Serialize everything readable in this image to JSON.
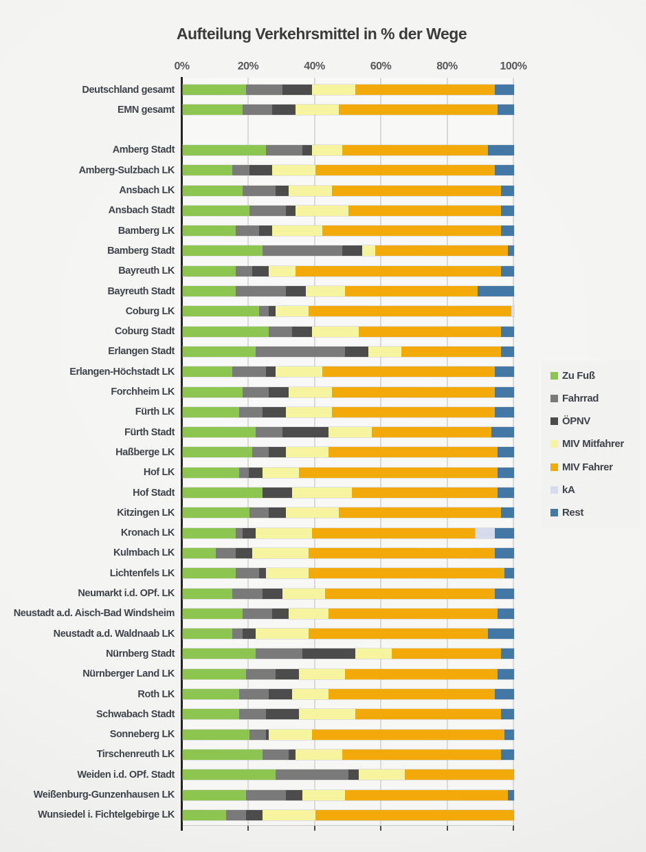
{
  "page": {
    "title": "Aufteilung Verkehrsmittel in % der Wege"
  },
  "chart_data": {
    "type": "bar",
    "orientation": "horizontal-stacked",
    "unit": "percent of trips",
    "xlim": [
      0,
      100
    ],
    "tick_labels": [
      "0%",
      "20%",
      "40%",
      "60%",
      "80%",
      "100%"
    ],
    "tick_values": [
      0,
      20,
      40,
      60,
      80,
      100
    ],
    "grid": "vertical",
    "legend_position": "right",
    "series": [
      {
        "name": "Zu Fuß",
        "color": "#8cc650"
      },
      {
        "name": "Fahrrad",
        "color": "#7a7a7a"
      },
      {
        "name": "ÖPNV",
        "color": "#4c4c4c"
      },
      {
        "name": "MIV Mitfahrer",
        "color": "#f7f4a0"
      },
      {
        "name": "MIV Fahrer",
        "color": "#f2a90a"
      },
      {
        "name": "kA",
        "color": "#d6dcec"
      },
      {
        "name": "Rest",
        "color": "#4377a5"
      }
    ],
    "rows": [
      {
        "label": "Deutschland gesamt",
        "values": [
          19,
          11,
          9,
          13,
          42,
          0,
          6
        ]
      },
      {
        "label": "EMN gesamt",
        "values": [
          18,
          9,
          7,
          13,
          48,
          0,
          5
        ]
      },
      {
        "label": "Amberg Stadt",
        "values": [
          25,
          11,
          3,
          9,
          44,
          0,
          8
        ]
      },
      {
        "label": "Amberg-Sulzbach LK",
        "values": [
          15,
          5,
          7,
          13,
          54,
          0,
          6
        ]
      },
      {
        "label": "Ansbach LK",
        "values": [
          18,
          10,
          4,
          13,
          51,
          0,
          4
        ]
      },
      {
        "label": "Ansbach Stadt",
        "values": [
          20,
          11,
          3,
          16,
          46,
          0,
          4
        ]
      },
      {
        "label": "Bamberg LK",
        "values": [
          16,
          7,
          4,
          15,
          54,
          0,
          4
        ]
      },
      {
        "label": "Bamberg Stadt",
        "values": [
          24,
          24,
          6,
          4,
          40,
          0,
          2
        ]
      },
      {
        "label": "Bayreuth LK",
        "values": [
          16,
          5,
          5,
          8,
          62,
          0,
          4
        ]
      },
      {
        "label": "Bayreuth Stadt",
        "values": [
          16,
          15,
          6,
          12,
          40,
          0,
          11
        ]
      },
      {
        "label": "Coburg LK",
        "values": [
          23,
          3,
          2,
          10,
          61,
          1,
          0
        ]
      },
      {
        "label": "Coburg Stadt",
        "values": [
          26,
          7,
          6,
          14,
          43,
          0,
          4
        ]
      },
      {
        "label": "Erlangen Stadt",
        "values": [
          22,
          27,
          7,
          10,
          30,
          0,
          4
        ]
      },
      {
        "label": "Erlangen-Höchstadt LK",
        "values": [
          15,
          10,
          3,
          14,
          52,
          0,
          6
        ]
      },
      {
        "label": "Forchheim LK",
        "values": [
          18,
          8,
          6,
          13,
          49,
          0,
          6
        ]
      },
      {
        "label": "Fürth LK",
        "values": [
          17,
          7,
          7,
          14,
          49,
          0,
          6
        ]
      },
      {
        "label": "Fürth Stadt",
        "values": [
          22,
          8,
          14,
          13,
          36,
          0,
          7
        ]
      },
      {
        "label": "Haßberge LK",
        "values": [
          21,
          5,
          5,
          13,
          51,
          0,
          5
        ]
      },
      {
        "label": "Hof LK",
        "values": [
          17,
          3,
          4,
          11,
          60,
          0,
          5
        ]
      },
      {
        "label": "Hof Stadt",
        "values": [
          24,
          0,
          9,
          18,
          44,
          0,
          5
        ]
      },
      {
        "label": "Kitzingen LK",
        "values": [
          20,
          6,
          5,
          16,
          49,
          0,
          4
        ]
      },
      {
        "label": "Kronach LK",
        "values": [
          16,
          2,
          4,
          17,
          49,
          6,
          6
        ]
      },
      {
        "label": "Kulmbach LK",
        "values": [
          10,
          6,
          5,
          17,
          56,
          0,
          6
        ]
      },
      {
        "label": "Lichtenfels LK",
        "values": [
          16,
          7,
          2,
          13,
          59,
          0,
          3
        ]
      },
      {
        "label": "Neumarkt i.d. OPf. LK",
        "values": [
          15,
          9,
          6,
          13,
          51,
          0,
          6
        ]
      },
      {
        "label": "Neustadt a.d. Aisch-Bad Windsheim",
        "values": [
          18,
          9,
          5,
          12,
          51,
          0,
          5
        ]
      },
      {
        "label": "Neustadt a.d. Waldnaab LK",
        "values": [
          15,
          3,
          4,
          16,
          54,
          0,
          8
        ]
      },
      {
        "label": "Nürnberg Stadt",
        "values": [
          22,
          14,
          16,
          11,
          33,
          0,
          4
        ]
      },
      {
        "label": "Nürnberger Land LK",
        "values": [
          19,
          9,
          7,
          14,
          46,
          0,
          5
        ]
      },
      {
        "label": "Roth LK",
        "values": [
          17,
          9,
          7,
          11,
          50,
          0,
          6
        ]
      },
      {
        "label": "Schwabach Stadt",
        "values": [
          17,
          8,
          10,
          17,
          44,
          0,
          4
        ]
      },
      {
        "label": "Sonneberg LK",
        "values": [
          20,
          5,
          1,
          13,
          58,
          0,
          3
        ]
      },
      {
        "label": "Tirschenreuth LK",
        "values": [
          24,
          8,
          2,
          14,
          48,
          0,
          4
        ]
      },
      {
        "label": "Weiden i.d. OPf. Stadt",
        "values": [
          28,
          22,
          3,
          14,
          33,
          0,
          0
        ]
      },
      {
        "label": "Weißenburg-Gunzenhausen LK",
        "values": [
          19,
          12,
          5,
          13,
          49,
          0,
          2
        ]
      },
      {
        "label": "Wunsiedel i. Fichtelgebirge LK",
        "values": [
          13,
          6,
          5,
          16,
          60,
          0,
          0
        ]
      }
    ]
  }
}
